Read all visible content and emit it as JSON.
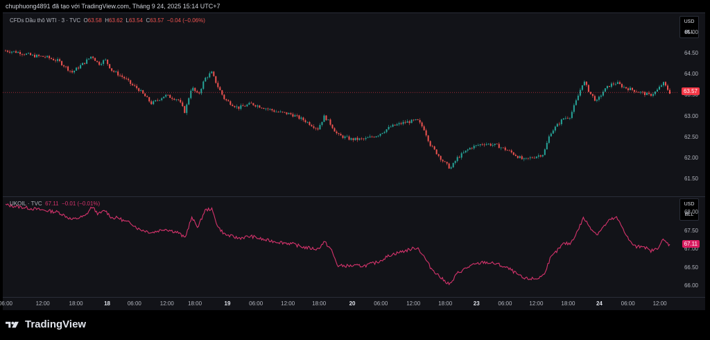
{
  "header": {
    "text": "chuphuong4891 đã tạo với TradingView.com, Tháng 9 24, 2025 15:14 UTC+7"
  },
  "brand": {
    "name": "TradingView",
    "logo_icon": "tradingview-logo-icon"
  },
  "colors": {
    "background": "#121318",
    "up": "#26a69a",
    "down": "#ef5350",
    "ukoil": "#d6336c",
    "last_wti": "#f23645",
    "last_ukoil": "#d81b60"
  },
  "panels": {
    "wti": {
      "symbol": "CFDs Dầu thô WTI · 3 · TVC",
      "o_label": "O",
      "o_val": "63.58",
      "h_label": "H",
      "h_val": "63.62",
      "l_label": "L",
      "l_val": "63.54",
      "c_label": "C",
      "c_val": "63.57",
      "change": "−0.04 (−0.06%)",
      "unit_currency": "USD",
      "unit_measure": "BLL",
      "last_price": "63.57"
    },
    "ukoil": {
      "symbol": "UKOIL · TVC",
      "value": "67.11",
      "change": "−0.01 (−0.01%)",
      "unit_currency": "USD",
      "unit_measure": "BLL",
      "last_price": "67.11"
    }
  },
  "chart_data": [
    {
      "type": "candlestick",
      "title": "CFDs Dầu thô WTI · 3 · TVC",
      "ylim": [
        61.2,
        65.3
      ],
      "yticks": [
        "65.00",
        "64.50",
        "64.00",
        "63.50",
        "63.00",
        "62.50",
        "62.00",
        "61.50"
      ],
      "x_index_range": [
        0,
        100
      ],
      "close_path": [
        [
          0,
          64.57
        ],
        [
          2,
          64.53
        ],
        [
          4,
          64.45
        ],
        [
          6,
          64.42
        ],
        [
          8,
          64.32
        ],
        [
          10,
          64.05
        ],
        [
          12,
          64.3
        ],
        [
          13,
          64.45
        ],
        [
          14,
          64.25
        ],
        [
          15,
          64.35
        ],
        [
          16,
          64.1
        ],
        [
          17,
          64.0
        ],
        [
          18,
          63.9
        ],
        [
          19,
          63.75
        ],
        [
          20,
          63.65
        ],
        [
          22,
          63.3
        ],
        [
          24,
          63.5
        ],
        [
          26,
          63.4
        ],
        [
          27,
          63.1
        ],
        [
          28,
          63.7
        ],
        [
          29,
          63.5
        ],
        [
          30,
          63.9
        ],
        [
          31,
          64.05
        ],
        [
          32,
          63.7
        ],
        [
          33,
          63.4
        ],
        [
          35,
          63.2
        ],
        [
          37,
          63.3
        ],
        [
          39,
          63.2
        ],
        [
          41,
          63.1
        ],
        [
          43,
          63.05
        ],
        [
          45,
          62.9
        ],
        [
          47,
          62.7
        ],
        [
          48,
          63.0
        ],
        [
          49,
          62.8
        ],
        [
          50,
          62.55
        ],
        [
          52,
          62.45
        ],
        [
          54,
          62.45
        ],
        [
          56,
          62.55
        ],
        [
          58,
          62.75
        ],
        [
          60,
          62.85
        ],
        [
          62,
          62.9
        ],
        [
          63,
          62.7
        ],
        [
          64,
          62.3
        ],
        [
          66,
          61.9
        ],
        [
          67,
          61.75
        ],
        [
          68,
          62.0
        ],
        [
          70,
          62.25
        ],
        [
          72,
          62.35
        ],
        [
          74,
          62.3
        ],
        [
          76,
          62.15
        ],
        [
          78,
          61.95
        ],
        [
          80,
          62.05
        ],
        [
          81,
          62.1
        ],
        [
          82,
          62.6
        ],
        [
          84,
          62.95
        ],
        [
          85,
          63.0
        ],
        [
          86,
          63.4
        ],
        [
          87,
          63.85
        ],
        [
          88,
          63.55
        ],
        [
          89,
          63.35
        ],
        [
          90,
          63.6
        ],
        [
          91,
          63.75
        ],
        [
          92,
          63.8
        ],
        [
          93,
          63.7
        ],
        [
          94,
          63.65
        ],
        [
          95,
          63.6
        ],
        [
          96,
          63.55
        ],
        [
          97,
          63.5
        ],
        [
          98,
          63.6
        ],
        [
          99,
          63.8
        ],
        [
          100,
          63.57
        ]
      ]
    },
    {
      "type": "line",
      "title": "UKOIL · TVC",
      "ylim": [
        65.8,
        68.3
      ],
      "yticks": [
        "68.00",
        "67.50",
        "67.00",
        "66.50",
        "66.00"
      ],
      "x_index_range": [
        0,
        100
      ],
      "series": [
        {
          "values": [
            [
              0,
              68.2
            ],
            [
              2,
              68.15
            ],
            [
              4,
              68.1
            ],
            [
              6,
              68.05
            ],
            [
              8,
              68.0
            ],
            [
              10,
              67.8
            ],
            [
              12,
              67.9
            ],
            [
              13,
              68.15
            ],
            [
              14,
              67.95
            ],
            [
              15,
              68.05
            ],
            [
              16,
              67.85
            ],
            [
              17,
              67.85
            ],
            [
              18,
              67.75
            ],
            [
              19,
              67.7
            ],
            [
              20,
              67.55
            ],
            [
              22,
              67.45
            ],
            [
              24,
              67.55
            ],
            [
              26,
              67.45
            ],
            [
              27,
              67.3
            ],
            [
              28,
              67.85
            ],
            [
              29,
              67.6
            ],
            [
              30,
              68.05
            ],
            [
              31,
              68.1
            ],
            [
              32,
              67.6
            ],
            [
              33,
              67.4
            ],
            [
              35,
              67.3
            ],
            [
              37,
              67.35
            ],
            [
              39,
              67.25
            ],
            [
              41,
              67.2
            ],
            [
              43,
              67.15
            ],
            [
              45,
              67.05
            ],
            [
              47,
              67.0
            ],
            [
              48,
              67.2
            ],
            [
              49,
              67.0
            ],
            [
              50,
              66.55
            ],
            [
              52,
              66.55
            ],
            [
              54,
              66.55
            ],
            [
              56,
              66.65
            ],
            [
              58,
              66.85
            ],
            [
              60,
              66.95
            ],
            [
              62,
              67.05
            ],
            [
              63,
              66.8
            ],
            [
              64,
              66.5
            ],
            [
              66,
              66.15
            ],
            [
              67,
              66.05
            ],
            [
              68,
              66.35
            ],
            [
              70,
              66.55
            ],
            [
              72,
              66.65
            ],
            [
              74,
              66.6
            ],
            [
              76,
              66.45
            ],
            [
              78,
              66.2
            ],
            [
              80,
              66.2
            ],
            [
              81,
              66.3
            ],
            [
              82,
              66.75
            ],
            [
              84,
              67.15
            ],
            [
              85,
              67.15
            ],
            [
              86,
              67.45
            ],
            [
              87,
              67.85
            ],
            [
              88,
              67.6
            ],
            [
              89,
              67.4
            ],
            [
              90,
              67.6
            ],
            [
              91,
              67.8
            ],
            [
              92,
              67.85
            ],
            [
              93,
              67.55
            ],
            [
              94,
              67.2
            ],
            [
              95,
              67.05
            ],
            [
              96,
              67.1
            ],
            [
              97,
              66.95
            ],
            [
              98,
              67.0
            ],
            [
              99,
              67.25
            ],
            [
              100,
              67.11
            ]
          ]
        }
      ]
    }
  ],
  "x_axis": {
    "ticks": [
      {
        "label": "06:00",
        "x": 0,
        "bold": false
      },
      {
        "label": "12:00",
        "x": 5.6,
        "bold": false
      },
      {
        "label": "18:00",
        "x": 10.6,
        "bold": false
      },
      {
        "label": "18",
        "x": 15.3,
        "bold": true
      },
      {
        "label": "06:00",
        "x": 19.4,
        "bold": false
      },
      {
        "label": "12:00",
        "x": 24.3,
        "bold": false
      },
      {
        "label": "18:00",
        "x": 28.5,
        "bold": false
      },
      {
        "label": "19",
        "x": 33.4,
        "bold": true
      },
      {
        "label": "06:00",
        "x": 37.7,
        "bold": false
      },
      {
        "label": "12:00",
        "x": 42.5,
        "bold": false
      },
      {
        "label": "18:00",
        "x": 47.2,
        "bold": false
      },
      {
        "label": "20",
        "x": 52.2,
        "bold": true
      },
      {
        "label": "06:00",
        "x": 56.5,
        "bold": false
      },
      {
        "label": "12:00",
        "x": 61.4,
        "bold": false
      },
      {
        "label": "18:00",
        "x": 66.2,
        "bold": false
      },
      {
        "label": "23",
        "x": 70.9,
        "bold": true
      },
      {
        "label": "06:00",
        "x": 75.2,
        "bold": false
      },
      {
        "label": "12:00",
        "x": 79.9,
        "bold": false
      },
      {
        "label": "18:00",
        "x": 84.7,
        "bold": false
      },
      {
        "label": "24",
        "x": 89.4,
        "bold": true
      },
      {
        "label": "06:00",
        "x": 93.7,
        "bold": false
      },
      {
        "label": "12:00",
        "x": 98.5,
        "bold": false
      }
    ]
  }
}
